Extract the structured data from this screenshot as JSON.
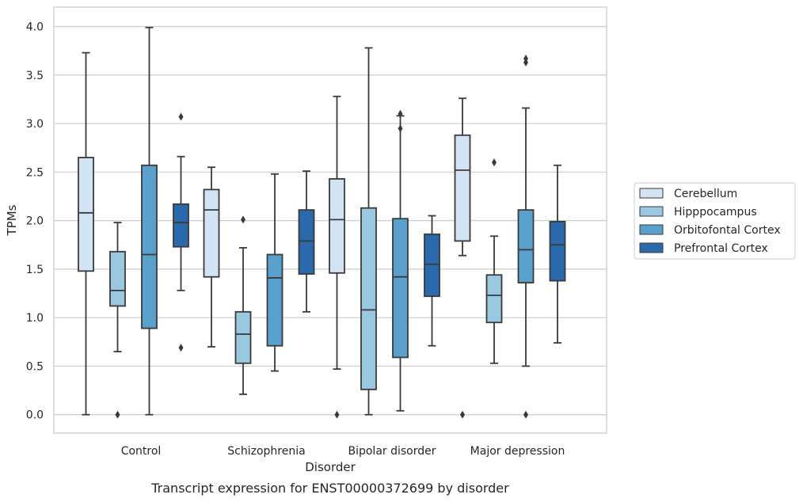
{
  "chart_data": {
    "type": "box",
    "caption": "Transcript expression for ENST00000372699 by disorder",
    "xlabel": "Disorder",
    "ylabel": "TPMs",
    "ylim": [
      -0.19,
      4.2
    ],
    "yticks": [
      "0.0",
      "0.5",
      "1.0",
      "1.5",
      "2.0",
      "2.5",
      "3.0",
      "3.5",
      "4.0"
    ],
    "grid": "horizontal",
    "legend_position": "right",
    "categories": [
      "Control",
      "Schizophrenia",
      "Bipolar disorder",
      "Major depression"
    ],
    "series": [
      {
        "name": "Cerebellum",
        "color": "#d2e3f3",
        "boxes": [
          {
            "whislo": 0.0,
            "q1": 1.48,
            "med": 2.08,
            "q3": 2.65,
            "whishi": 3.73,
            "fliers": []
          },
          {
            "whislo": 0.7,
            "q1": 1.42,
            "med": 2.11,
            "q3": 2.32,
            "whishi": 2.55,
            "fliers": []
          },
          {
            "whislo": 0.47,
            "q1": 1.46,
            "med": 2.01,
            "q3": 2.43,
            "whishi": 3.28,
            "fliers": [
              0.0
            ]
          },
          {
            "whislo": 1.64,
            "q1": 1.79,
            "med": 2.52,
            "q3": 2.88,
            "whishi": 3.26,
            "fliers": [
              0.0
            ]
          }
        ]
      },
      {
        "name": "Hipppocampus",
        "color": "#9ac8e0",
        "boxes": [
          {
            "whislo": 0.65,
            "q1": 1.12,
            "med": 1.28,
            "q3": 1.68,
            "whishi": 1.98,
            "fliers": [
              0.0
            ]
          },
          {
            "whislo": 0.21,
            "q1": 0.53,
            "med": 0.83,
            "q3": 1.06,
            "whishi": 1.72,
            "fliers": [
              2.01
            ]
          },
          {
            "whislo": 0.0,
            "q1": 0.26,
            "med": 1.08,
            "q3": 2.13,
            "whishi": 3.78,
            "fliers": []
          },
          {
            "whislo": 0.53,
            "q1": 0.95,
            "med": 1.23,
            "q3": 1.44,
            "whishi": 1.84,
            "fliers": [
              2.6
            ]
          }
        ]
      },
      {
        "name": "Orbitofontal Cortex",
        "color": "#5aa0cd",
        "boxes": [
          {
            "whislo": 0.0,
            "q1": 0.89,
            "med": 1.65,
            "q3": 2.57,
            "whishi": 3.99,
            "fliers": []
          },
          {
            "whislo": 0.45,
            "q1": 0.71,
            "med": 1.41,
            "q3": 1.65,
            "whishi": 2.48,
            "fliers": []
          },
          {
            "whislo": 0.04,
            "q1": 0.59,
            "med": 1.42,
            "q3": 2.02,
            "whishi": 3.08,
            "fliers": [
              2.95,
              3.1
            ]
          },
          {
            "whislo": 0.5,
            "q1": 1.36,
            "med": 1.7,
            "q3": 2.11,
            "whishi": 3.16,
            "fliers": [
              0.0,
              3.63,
              3.67
            ]
          }
        ]
      },
      {
        "name": "Prefrontal Cortex",
        "color": "#2a6aac",
        "boxes": [
          {
            "whislo": 1.28,
            "q1": 1.73,
            "med": 1.98,
            "q3": 2.17,
            "whishi": 2.66,
            "fliers": [
              0.69,
              3.07
            ]
          },
          {
            "whislo": 1.06,
            "q1": 1.45,
            "med": 1.79,
            "q3": 2.11,
            "whishi": 2.51,
            "fliers": []
          },
          {
            "whislo": 0.71,
            "q1": 1.22,
            "med": 1.55,
            "q3": 1.86,
            "whishi": 2.05,
            "fliers": []
          },
          {
            "whislo": 0.74,
            "q1": 1.38,
            "med": 1.75,
            "q3": 1.99,
            "whishi": 2.57,
            "fliers": []
          }
        ]
      }
    ]
  }
}
